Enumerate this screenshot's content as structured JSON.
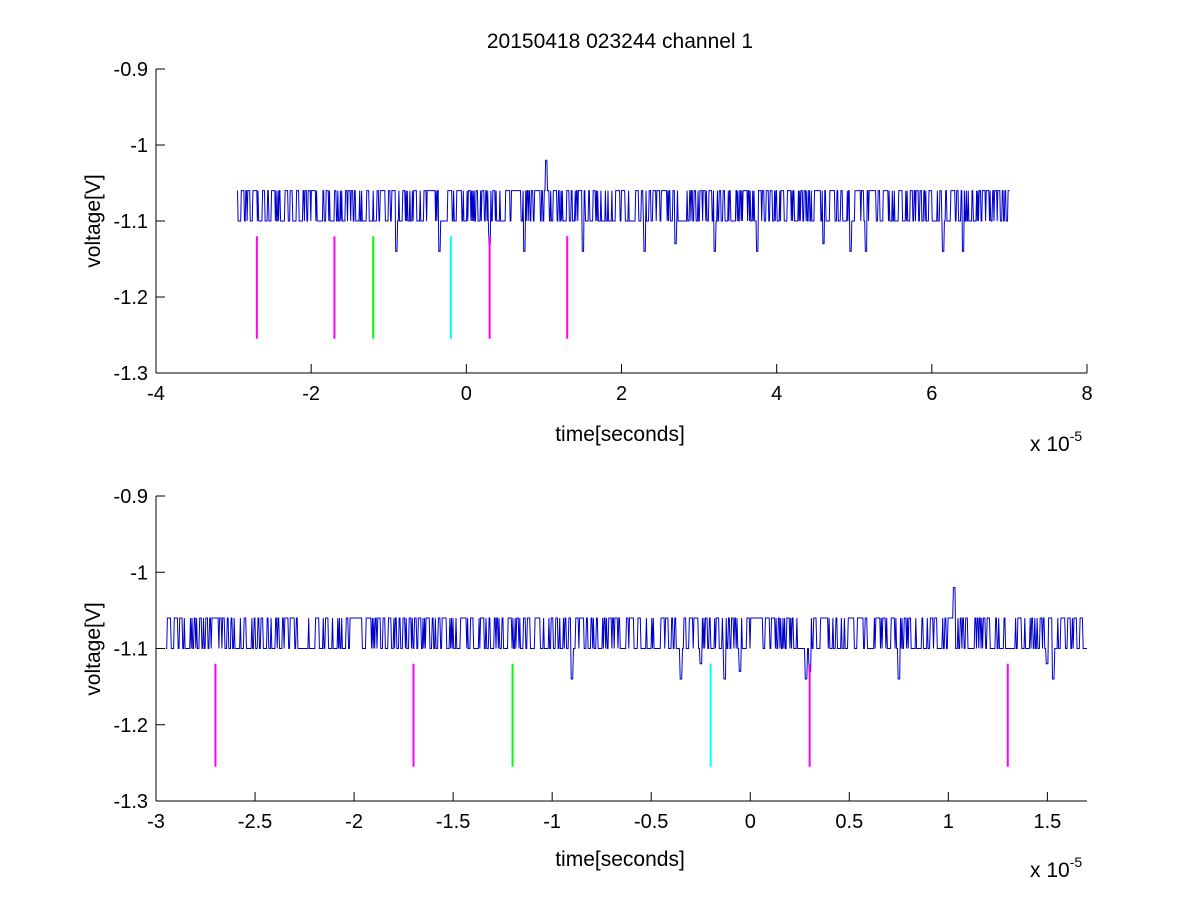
{
  "title": "20150418 023244 channel 1",
  "exponent_label": {
    "base": "x 10",
    "power": "-5"
  },
  "chart_data": [
    {
      "type": "line",
      "title": "20150418 023244 channel 1",
      "xlabel": "time[seconds]",
      "ylabel": "voltage[V]",
      "xscale": 1e-05,
      "xlim": [
        -4,
        8
      ],
      "ylim": [
        -1.3,
        -0.9
      ],
      "y_reversed": true,
      "grid": false,
      "xticks": [
        -4,
        -2,
        0,
        2,
        4,
        6,
        8
      ],
      "xtick_labels": [
        "-4",
        "-2",
        "0",
        "2",
        "4",
        "6",
        "8"
      ],
      "yticks": [
        -0.9,
        -1,
        -1.1,
        -1.2,
        -1.3
      ],
      "ytick_labels": [
        "-0.9",
        "-1",
        "-1.1",
        "-1.2",
        "-1.3"
      ],
      "signal": {
        "name": "",
        "color": "#0000cc",
        "x_range": [
          -2.95,
          7.0
        ],
        "levels": [
          -1.06,
          -1.1
        ],
        "dips": [
          {
            "x": -0.9,
            "y": -1.14
          },
          {
            "x": -0.35,
            "y": -1.14
          },
          {
            "x": 0.3,
            "y": -1.13
          },
          {
            "x": 0.75,
            "y": -1.14
          },
          {
            "x": 1.5,
            "y": -1.14
          },
          {
            "x": 2.3,
            "y": -1.14
          },
          {
            "x": 2.7,
            "y": -1.13
          },
          {
            "x": 3.2,
            "y": -1.14
          },
          {
            "x": 3.75,
            "y": -1.14
          },
          {
            "x": 4.6,
            "y": -1.13
          },
          {
            "x": 4.95,
            "y": -1.14
          },
          {
            "x": 5.15,
            "y": -1.14
          },
          {
            "x": 6.15,
            "y": -1.14
          },
          {
            "x": 6.4,
            "y": -1.14
          }
        ],
        "spike": {
          "x": 1.03,
          "y": -1.02
        }
      },
      "markers": [
        {
          "x": -2.7,
          "y_top": -1.12,
          "y_bottom": -1.255,
          "color": "#ff00ff"
        },
        {
          "x": -1.7,
          "y_top": -1.12,
          "y_bottom": -1.255,
          "color": "#ff00ff"
        },
        {
          "x": -1.2,
          "y_top": -1.12,
          "y_bottom": -1.255,
          "color": "#00ff00"
        },
        {
          "x": -0.2,
          "y_top": -1.12,
          "y_bottom": -1.255,
          "color": "#00ffff"
        },
        {
          "x": 0.3,
          "y_top": -1.12,
          "y_bottom": -1.255,
          "color": "#ff00ff"
        },
        {
          "x": 1.3,
          "y_top": -1.12,
          "y_bottom": -1.255,
          "color": "#ff00ff"
        }
      ]
    },
    {
      "type": "line",
      "title": "",
      "xlabel": "time[seconds]",
      "ylabel": "voltage[V]",
      "xscale": 1e-05,
      "xlim": [
        -3.0,
        1.7
      ],
      "ylim": [
        -1.3,
        -0.9
      ],
      "y_reversed": true,
      "grid": false,
      "xticks": [
        -3,
        -2.5,
        -2,
        -1.5,
        -1,
        -0.5,
        0,
        0.5,
        1,
        1.5
      ],
      "xtick_labels": [
        "-3",
        "-2.5",
        "-2",
        "-1.5",
        "-1",
        "-0.5",
        "0",
        "0.5",
        "1",
        "1.5"
      ],
      "yticks": [
        -0.9,
        -1,
        -1.1,
        -1.2,
        -1.3
      ],
      "ytick_labels": [
        "-0.9",
        "-1",
        "-1.1",
        "-1.2",
        "-1.3"
      ],
      "signal": {
        "name": "",
        "color": "#0000cc",
        "x_range": [
          -2.95,
          1.7
        ],
        "levels": [
          -1.06,
          -1.1
        ],
        "dips": [
          {
            "x": -0.9,
            "y": -1.14
          },
          {
            "x": -0.35,
            "y": -1.14
          },
          {
            "x": -0.25,
            "y": -1.12
          },
          {
            "x": -0.13,
            "y": -1.14
          },
          {
            "x": -0.05,
            "y": -1.13
          },
          {
            "x": 0.28,
            "y": -1.14
          },
          {
            "x": 0.3,
            "y": -1.13
          },
          {
            "x": 0.75,
            "y": -1.14
          },
          {
            "x": 1.5,
            "y": -1.12
          },
          {
            "x": 1.53,
            "y": -1.14
          }
        ],
        "spike": {
          "x": 1.03,
          "y": -1.02
        }
      },
      "markers": [
        {
          "x": -2.7,
          "y_top": -1.12,
          "y_bottom": -1.255,
          "color": "#ff00ff"
        },
        {
          "x": -1.7,
          "y_top": -1.12,
          "y_bottom": -1.255,
          "color": "#ff00ff"
        },
        {
          "x": -1.2,
          "y_top": -1.12,
          "y_bottom": -1.255,
          "color": "#00ff00"
        },
        {
          "x": -0.2,
          "y_top": -1.12,
          "y_bottom": -1.255,
          "color": "#00ffff"
        },
        {
          "x": 0.3,
          "y_top": -1.12,
          "y_bottom": -1.255,
          "color": "#ff00ff"
        },
        {
          "x": 1.3,
          "y_top": -1.12,
          "y_bottom": -1.255,
          "color": "#ff00ff"
        }
      ]
    }
  ]
}
